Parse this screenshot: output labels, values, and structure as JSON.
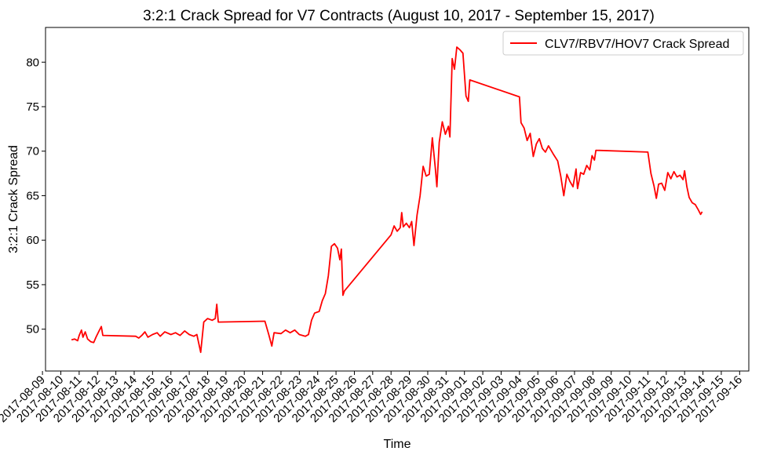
{
  "chart_data": {
    "type": "line",
    "title": "3:2:1 Crack Spread for V7 Contracts (August 10, 2017 - September 15, 2017)",
    "xlabel": "Time",
    "ylabel": "3:2:1 Crack Spread",
    "xlim": [
      "2017-08-09T04:00",
      "2017-09-16T12:00"
    ],
    "ylim": [
      45.3,
      83.9
    ],
    "grid": false,
    "legend_position": "top-right",
    "x_tick_labels": [
      "2017-08-09",
      "2017-08-10",
      "2017-08-11",
      "2017-08-12",
      "2017-08-13",
      "2017-08-14",
      "2017-08-15",
      "2017-08-16",
      "2017-08-17",
      "2017-08-18",
      "2017-08-19",
      "2017-08-20",
      "2017-08-21",
      "2017-08-22",
      "2017-08-23",
      "2017-08-24",
      "2017-08-25",
      "2017-08-26",
      "2017-08-27",
      "2017-08-28",
      "2017-08-29",
      "2017-08-30",
      "2017-08-31",
      "2017-09-01",
      "2017-09-02",
      "2017-09-03",
      "2017-09-04",
      "2017-09-05",
      "2017-09-06",
      "2017-09-07",
      "2017-09-08",
      "2017-09-09",
      "2017-09-10",
      "2017-09-11",
      "2017-09-12",
      "2017-09-13",
      "2017-09-14",
      "2017-09-15",
      "2017-09-16"
    ],
    "y_ticks": [
      50,
      55,
      60,
      65,
      70,
      75,
      80
    ],
    "series": [
      {
        "name": "CLV7/RBV7/HOV7 Crack Spread",
        "color": "#ff0000",
        "points": [
          [
            "2017-08-10T14:00",
            48.8
          ],
          [
            "2017-08-10T18:00",
            48.9
          ],
          [
            "2017-08-10T22:00",
            48.7
          ],
          [
            "2017-08-11T00:00",
            49.3
          ],
          [
            "2017-08-11T03:00",
            49.9
          ],
          [
            "2017-08-11T05:00",
            49.1
          ],
          [
            "2017-08-11T08:00",
            49.7
          ],
          [
            "2017-08-11T11:00",
            48.9
          ],
          [
            "2017-08-11T15:00",
            48.6
          ],
          [
            "2017-08-11T19:00",
            48.5
          ],
          [
            "2017-08-11T22:00",
            49.1
          ],
          [
            "2017-08-12T02:00",
            49.8
          ],
          [
            "2017-08-12T05:00",
            50.3
          ],
          [
            "2017-08-12T07:00",
            49.3
          ],
          [
            "2017-08-14T02:00",
            49.2
          ],
          [
            "2017-08-14T06:00",
            49.0
          ],
          [
            "2017-08-14T10:00",
            49.3
          ],
          [
            "2017-08-14T14:00",
            49.7
          ],
          [
            "2017-08-14T18:00",
            49.1
          ],
          [
            "2017-08-15T00:00",
            49.4
          ],
          [
            "2017-08-15T06:00",
            49.6
          ],
          [
            "2017-08-15T10:00",
            49.2
          ],
          [
            "2017-08-15T16:00",
            49.7
          ],
          [
            "2017-08-16T00:00",
            49.4
          ],
          [
            "2017-08-16T06:00",
            49.6
          ],
          [
            "2017-08-16T12:00",
            49.3
          ],
          [
            "2017-08-16T18:00",
            49.8
          ],
          [
            "2017-08-17T00:00",
            49.4
          ],
          [
            "2017-08-17T06:00",
            49.2
          ],
          [
            "2017-08-17T10:00",
            49.4
          ],
          [
            "2017-08-17T15:00",
            47.4
          ],
          [
            "2017-08-17T19:00",
            50.8
          ],
          [
            "2017-08-18T00:00",
            51.2
          ],
          [
            "2017-08-18T06:00",
            51.0
          ],
          [
            "2017-08-18T10:00",
            51.2
          ],
          [
            "2017-08-18T12:00",
            52.8
          ],
          [
            "2017-08-18T14:00",
            50.8
          ],
          [
            "2017-08-21T03:00",
            50.9
          ],
          [
            "2017-08-21T08:00",
            49.4
          ],
          [
            "2017-08-21T12:00",
            48.1
          ],
          [
            "2017-08-21T15:00",
            49.6
          ],
          [
            "2017-08-22T00:00",
            49.5
          ],
          [
            "2017-08-22T06:00",
            49.9
          ],
          [
            "2017-08-22T12:00",
            49.6
          ],
          [
            "2017-08-22T18:00",
            49.9
          ],
          [
            "2017-08-23T00:00",
            49.4
          ],
          [
            "2017-08-23T08:00",
            49.2
          ],
          [
            "2017-08-23T12:00",
            49.4
          ],
          [
            "2017-08-23T16:00",
            51.0
          ],
          [
            "2017-08-23T20:00",
            51.8
          ],
          [
            "2017-08-24T02:00",
            52.0
          ],
          [
            "2017-08-24T06:00",
            53.2
          ],
          [
            "2017-08-24T10:00",
            54.0
          ],
          [
            "2017-08-24T14:00",
            56.0
          ],
          [
            "2017-08-24T18:00",
            59.3
          ],
          [
            "2017-08-24T22:00",
            59.6
          ],
          [
            "2017-08-25T02:00",
            59.1
          ],
          [
            "2017-08-25T05:00",
            57.8
          ],
          [
            "2017-08-25T07:00",
            59.0
          ],
          [
            "2017-08-25T09:00",
            53.8
          ],
          [
            "2017-08-25T11:00",
            54.3
          ],
          [
            "2017-08-28T00:00",
            60.6
          ],
          [
            "2017-08-28T04:00",
            61.6
          ],
          [
            "2017-08-28T08:00",
            61.0
          ],
          [
            "2017-08-28T12:00",
            61.4
          ],
          [
            "2017-08-28T14:00",
            63.1
          ],
          [
            "2017-08-28T16:00",
            61.5
          ],
          [
            "2017-08-28T20:00",
            61.9
          ],
          [
            "2017-08-29T00:00",
            61.4
          ],
          [
            "2017-08-29T03:00",
            62.1
          ],
          [
            "2017-08-29T06:00",
            59.4
          ],
          [
            "2017-08-29T10:00",
            62.8
          ],
          [
            "2017-08-29T14:00",
            65.0
          ],
          [
            "2017-08-29T18:00",
            68.3
          ],
          [
            "2017-08-29T22:00",
            67.2
          ],
          [
            "2017-08-30T02:00",
            67.4
          ],
          [
            "2017-08-30T06:00",
            71.5
          ],
          [
            "2017-08-30T10:00",
            68.0
          ],
          [
            "2017-08-30T12:00",
            66.0
          ],
          [
            "2017-08-30T15:00",
            71.0
          ],
          [
            "2017-08-30T19:00",
            73.3
          ],
          [
            "2017-08-30T23:00",
            71.9
          ],
          [
            "2017-08-31T03:00",
            72.8
          ],
          [
            "2017-08-31T05:00",
            71.6
          ],
          [
            "2017-08-31T08:00",
            80.4
          ],
          [
            "2017-08-31T11:00",
            79.2
          ],
          [
            "2017-08-31T14:00",
            81.7
          ],
          [
            "2017-08-31T18:00",
            81.4
          ],
          [
            "2017-08-31T22:00",
            81.0
          ],
          [
            "2017-09-01T02:00",
            76.2
          ],
          [
            "2017-09-01T05:00",
            75.6
          ],
          [
            "2017-09-01T07:00",
            78.0
          ],
          [
            "2017-09-04T00:00",
            76.1
          ],
          [
            "2017-09-04T02:00",
            73.2
          ],
          [
            "2017-09-04T06:00",
            72.6
          ],
          [
            "2017-09-04T10:00",
            71.2
          ],
          [
            "2017-09-04T14:00",
            72.0
          ],
          [
            "2017-09-04T18:00",
            69.4
          ],
          [
            "2017-09-04T22:00",
            70.8
          ],
          [
            "2017-09-05T02:00",
            71.4
          ],
          [
            "2017-09-05T06:00",
            70.3
          ],
          [
            "2017-09-05T10:00",
            69.9
          ],
          [
            "2017-09-05T14:00",
            70.6
          ],
          [
            "2017-09-05T20:00",
            69.7
          ],
          [
            "2017-09-06T02:00",
            68.9
          ],
          [
            "2017-09-06T06:00",
            67.2
          ],
          [
            "2017-09-06T10:00",
            65.0
          ],
          [
            "2017-09-06T14:00",
            67.4
          ],
          [
            "2017-09-06T18:00",
            66.6
          ],
          [
            "2017-09-06T22:00",
            66.0
          ],
          [
            "2017-09-07T02:00",
            68.0
          ],
          [
            "2017-09-07T04:00",
            65.8
          ],
          [
            "2017-09-07T08:00",
            67.6
          ],
          [
            "2017-09-07T12:00",
            67.4
          ],
          [
            "2017-09-07T16:00",
            68.4
          ],
          [
            "2017-09-07T20:00",
            67.9
          ],
          [
            "2017-09-07T23:00",
            69.5
          ],
          [
            "2017-09-08T02:00",
            69.0
          ],
          [
            "2017-09-08T04:00",
            70.1
          ],
          [
            "2017-09-11T00:00",
            69.9
          ],
          [
            "2017-09-11T04:00",
            67.5
          ],
          [
            "2017-09-11T08:00",
            66.1
          ],
          [
            "2017-09-11T11:00",
            64.7
          ],
          [
            "2017-09-11T14:00",
            66.3
          ],
          [
            "2017-09-11T18:00",
            66.4
          ],
          [
            "2017-09-11T22:00",
            65.6
          ],
          [
            "2017-09-12T02:00",
            67.6
          ],
          [
            "2017-09-12T06:00",
            66.9
          ],
          [
            "2017-09-12T10:00",
            67.7
          ],
          [
            "2017-09-12T14:00",
            67.1
          ],
          [
            "2017-09-12T18:00",
            67.3
          ],
          [
            "2017-09-12T22:00",
            66.8
          ],
          [
            "2017-09-13T00:00",
            67.8
          ],
          [
            "2017-09-13T03:00",
            66.0
          ],
          [
            "2017-09-13T06:00",
            64.8
          ],
          [
            "2017-09-13T10:00",
            64.2
          ],
          [
            "2017-09-13T14:00",
            64.0
          ],
          [
            "2017-09-13T18:00",
            63.4
          ],
          [
            "2017-09-13T21:00",
            62.9
          ],
          [
            "2017-09-13T23:00",
            63.2
          ]
        ]
      }
    ]
  }
}
